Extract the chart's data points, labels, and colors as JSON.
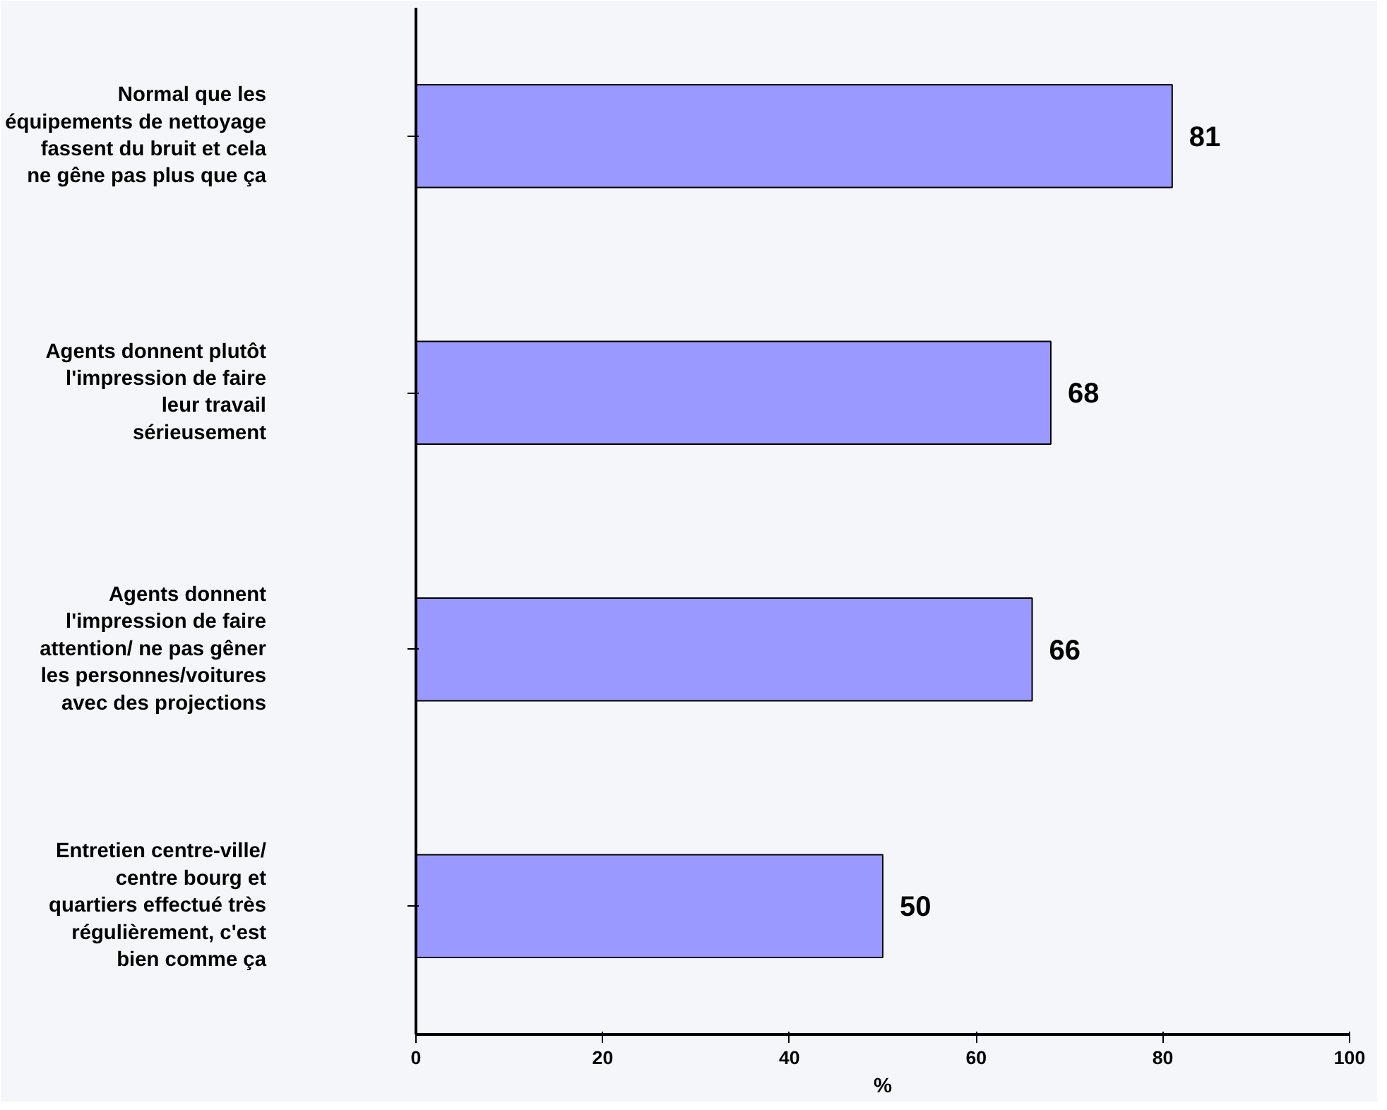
{
  "chart_data": {
    "type": "bar",
    "orientation": "horizontal",
    "xlabel": "%",
    "categories": [
      "Normal que les équipements de nettoyage fassent du bruit et cela ne gêne pas plus que ça",
      "Agents donnent plutôt l'impression de faire leur travail sérieusement",
      "Agents donnent l'impression de faire attention/ ne pas gêner les personnes/voitures avec des projections",
      "Entretien centre-ville/ centre bourg et quartiers effectué très régulièrement, c'est bien comme ça"
    ],
    "values": [
      81,
      68,
      66,
      50
    ],
    "color": "#9999ff",
    "data_labels": true,
    "xlim": [
      0,
      100
    ],
    "xticks": [
      0,
      20,
      40,
      60,
      80,
      100
    ],
    "grid": false
  }
}
